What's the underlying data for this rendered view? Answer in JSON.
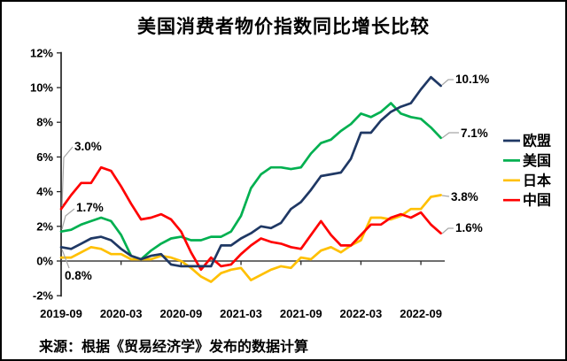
{
  "page": {
    "background": "#ffffff",
    "border_color": "#000000"
  },
  "title": "美国消费者物价指数同比增长比较",
  "source_note": "来源：根据《贸易经济学》发布的数据计算",
  "chart_data": {
    "type": "line",
    "title": "美国消费者物价指数同比增长比较",
    "x_start": "2019-09",
    "x_end": "2022-11",
    "x_interval": "monthly",
    "x_tick_labels": [
      "2019-09",
      "2020-03",
      "2020-09",
      "2021-03",
      "2021-09",
      "2022-03",
      "2022-09"
    ],
    "y_ticks": [
      {
        "label": "12%",
        "value": 12
      },
      {
        "label": "10%",
        "value": 10
      },
      {
        "label": "8%",
        "value": 8
      },
      {
        "label": "6%",
        "value": 6
      },
      {
        "label": "4%",
        "value": 4
      },
      {
        "label": "2%",
        "value": 2
      },
      {
        "label": "0%",
        "value": 0
      },
      {
        "label": "-2%",
        "value": -2
      }
    ],
    "ylim": [
      -2,
      12
    ],
    "grid": false,
    "legend_position": "right",
    "axis_color": "#262626",
    "zero_line_color": "#595959",
    "leader_line_color": "#a6a6a6",
    "series": [
      {
        "key": "eu",
        "name": "欧盟",
        "color": "#1f3864",
        "values": [
          0.8,
          0.7,
          1.0,
          1.3,
          1.4,
          1.2,
          0.7,
          0.3,
          0.1,
          0.3,
          0.4,
          -0.2,
          -0.3,
          -0.3,
          -0.3,
          -0.3,
          0.9,
          0.9,
          1.3,
          1.6,
          2.0,
          1.9,
          2.2,
          3.0,
          3.4,
          4.1,
          4.9,
          5.0,
          5.1,
          5.9,
          7.4,
          7.4,
          8.1,
          8.6,
          8.9,
          9.1,
          9.9,
          10.6,
          10.1
        ]
      },
      {
        "key": "us",
        "name": "美国",
        "color": "#00b050",
        "values": [
          1.7,
          1.8,
          2.1,
          2.3,
          2.5,
          2.3,
          1.5,
          0.3,
          0.1,
          0.6,
          1.0,
          1.3,
          1.4,
          1.2,
          1.2,
          1.4,
          1.4,
          1.7,
          2.6,
          4.2,
          5.0,
          5.4,
          5.4,
          5.3,
          5.4,
          6.2,
          6.8,
          7.0,
          7.5,
          7.9,
          8.5,
          8.3,
          8.6,
          9.1,
          8.5,
          8.3,
          8.2,
          7.7,
          7.1
        ]
      },
      {
        "key": "japan",
        "name": "日本",
        "color": "#ffc000",
        "values": [
          0.2,
          0.2,
          0.5,
          0.8,
          0.7,
          0.4,
          0.4,
          0.1,
          0.1,
          0.1,
          0.3,
          0.2,
          0.0,
          -0.4,
          -0.9,
          -1.2,
          -0.7,
          -0.5,
          -0.4,
          -1.1,
          -0.8,
          -0.5,
          -0.3,
          -0.4,
          0.2,
          0.1,
          0.6,
          0.8,
          0.5,
          0.9,
          1.2,
          2.5,
          2.5,
          2.4,
          2.6,
          3.0,
          3.0,
          3.7,
          3.8
        ]
      },
      {
        "key": "china",
        "name": "中国",
        "color": "#ff0000",
        "values": [
          3.0,
          3.8,
          4.5,
          4.5,
          5.4,
          5.2,
          4.3,
          3.3,
          2.4,
          2.5,
          2.7,
          2.4,
          1.7,
          0.5,
          -0.5,
          0.2,
          -0.3,
          -0.2,
          0.4,
          0.9,
          1.3,
          1.1,
          1.0,
          0.8,
          0.7,
          1.5,
          2.3,
          1.5,
          0.9,
          0.9,
          1.5,
          2.1,
          2.1,
          2.5,
          2.7,
          2.5,
          2.8,
          2.1,
          1.6
        ]
      }
    ],
    "annotations": [
      {
        "text": "3.0%",
        "series": "china",
        "point": "first"
      },
      {
        "text": "1.7%",
        "series": "us",
        "point": "first"
      },
      {
        "text": "0.8%",
        "series": "eu",
        "point": "first"
      },
      {
        "text": "10.1%",
        "series": "eu",
        "point": "last"
      },
      {
        "text": "7.1%",
        "series": "us",
        "point": "last"
      },
      {
        "text": "3.8%",
        "series": "japan",
        "point": "last"
      },
      {
        "text": "1.6%",
        "series": "china",
        "point": "last"
      }
    ]
  }
}
